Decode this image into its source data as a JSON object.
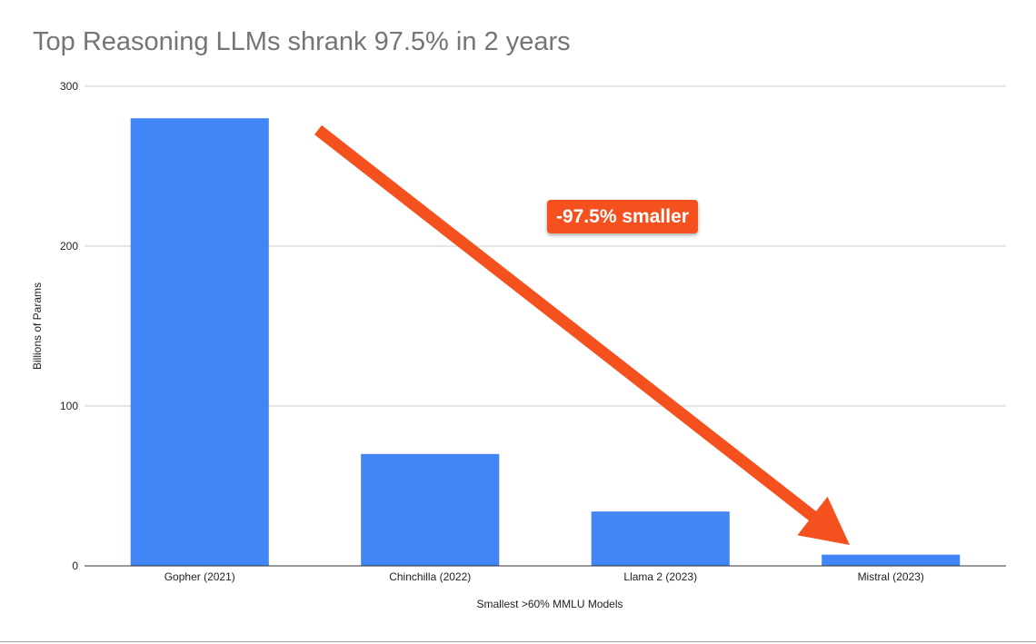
{
  "chart_data": {
    "type": "bar",
    "title": "Top Reasoning LLMs shrank 97.5% in 2 years",
    "xlabel": "Smallest >60% MMLU Models",
    "ylabel": "Billions of Params",
    "categories": [
      "Gopher (2021)",
      "Chinchilla (2022)",
      "Llama 2 (2023)",
      "Mistral (2023)"
    ],
    "values": [
      280,
      70,
      34,
      7
    ],
    "ylim": [
      0,
      300
    ],
    "yticks": [
      0,
      100,
      200,
      300
    ],
    "grid": true,
    "legend": "none",
    "annotation": "-97.5% smaller",
    "bar_color": "#4285f4",
    "arrow_color": "#f4511e"
  }
}
